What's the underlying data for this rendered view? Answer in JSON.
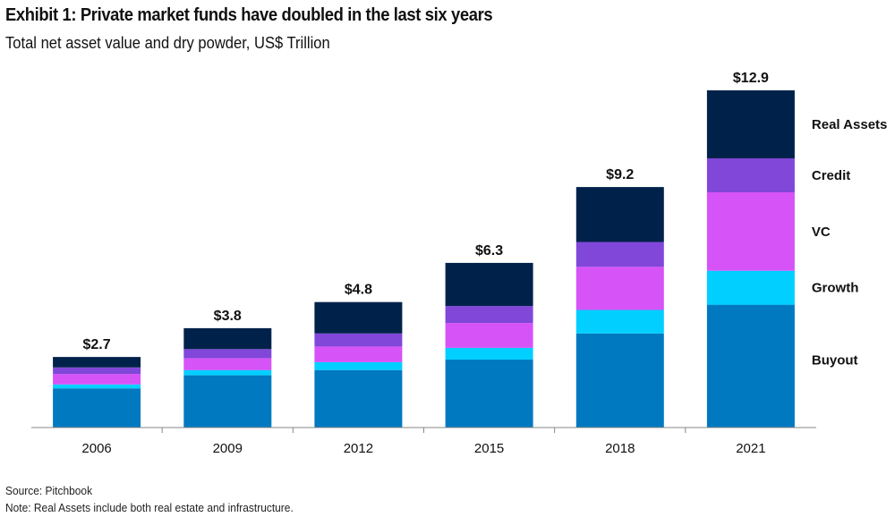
{
  "header": {
    "title": "Exhibit 1: Private market funds have doubled in the last six years",
    "subtitle": "Total net asset value and dry powder, US$ Trillion"
  },
  "footer": {
    "source": "Source: Pitchbook",
    "note": "Note: Real Assets include both real estate and infrastructure."
  },
  "chart_data": {
    "type": "bar",
    "stacked": true,
    "categories": [
      "2006",
      "2009",
      "2012",
      "2015",
      "2018",
      "2021"
    ],
    "totals": [
      2.7,
      3.8,
      4.8,
      6.3,
      9.2,
      12.9
    ],
    "total_labels": [
      "$2.7",
      "$3.8",
      "$4.8",
      "$6.3",
      "$9.2",
      "$12.9"
    ],
    "ylim": [
      0,
      14
    ],
    "grid": false,
    "legend": "right, labels beside top bar",
    "series": [
      {
        "name": "Buyout",
        "color": "#0079C1",
        "values": [
          1.5,
          2.0,
          2.2,
          2.6,
          3.6,
          4.7
        ]
      },
      {
        "name": "Growth",
        "color": "#00CFFF",
        "values": [
          0.15,
          0.2,
          0.3,
          0.45,
          0.9,
          1.3
        ]
      },
      {
        "name": "VC",
        "color": "#D653F7",
        "values": [
          0.4,
          0.45,
          0.6,
          0.95,
          1.65,
          3.0
        ]
      },
      {
        "name": "Credit",
        "color": "#8047D9",
        "values": [
          0.25,
          0.35,
          0.5,
          0.65,
          0.95,
          1.3
        ]
      },
      {
        "name": "Real Assets",
        "color": "#00224A",
        "values": [
          0.4,
          0.8,
          1.2,
          1.65,
          2.1,
          2.6
        ]
      }
    ]
  }
}
